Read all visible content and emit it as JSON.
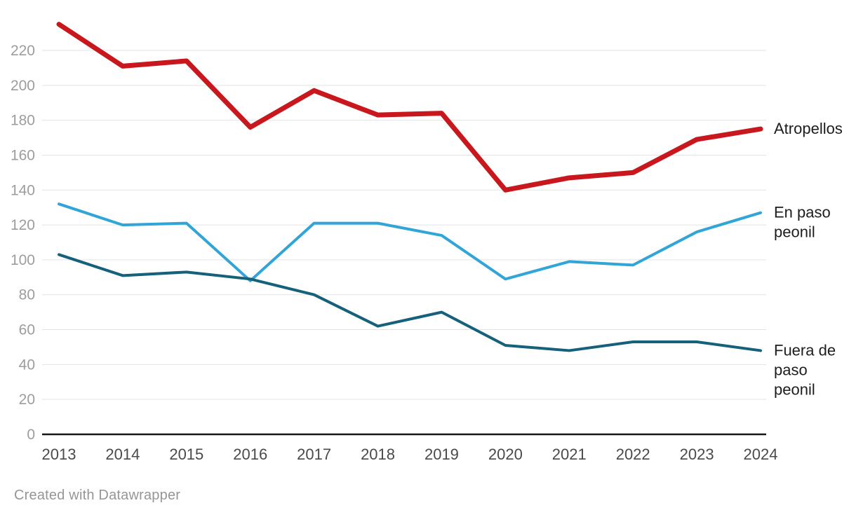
{
  "chart_data": {
    "type": "line",
    "x": [
      "2013",
      "2014",
      "2015",
      "2016",
      "2017",
      "2018",
      "2019",
      "2020",
      "2021",
      "2022",
      "2023",
      "2024"
    ],
    "y_ticks": [
      0,
      20,
      40,
      60,
      80,
      100,
      120,
      140,
      160,
      180,
      200,
      220
    ],
    "ylim": [
      0,
      240
    ],
    "grid": true,
    "legend_position": "end-of-line-right",
    "series": [
      {
        "name": "Atropellos",
        "label_lines": [
          "Atropellos"
        ],
        "color": "#c8171d",
        "stroke_width": 7,
        "values": [
          235,
          211,
          214,
          176,
          197,
          183,
          184,
          140,
          147,
          150,
          169,
          175
        ]
      },
      {
        "name": "En paso peonil",
        "label_lines": [
          "En paso",
          "peonil"
        ],
        "color": "#31a5d6",
        "stroke_width": 4,
        "values": [
          132,
          120,
          121,
          88,
          121,
          121,
          114,
          89,
          99,
          97,
          116,
          127
        ]
      },
      {
        "name": "Fuera de paso peonil",
        "label_lines": [
          "Fuera de",
          "paso",
          "peonil"
        ],
        "color": "#15607a",
        "stroke_width": 4,
        "values": [
          103,
          91,
          93,
          89,
          80,
          62,
          70,
          51,
          48,
          53,
          53,
          48
        ]
      }
    ],
    "axis_colors": {
      "grid": "#e3e3e3",
      "baseline": "#171717",
      "y_tick_label": "#9d9d9d",
      "x_tick_label": "#4a4a4a",
      "series_label": "#1d1d1d"
    }
  },
  "footer": {
    "credit": "Created with Datawrapper"
  }
}
